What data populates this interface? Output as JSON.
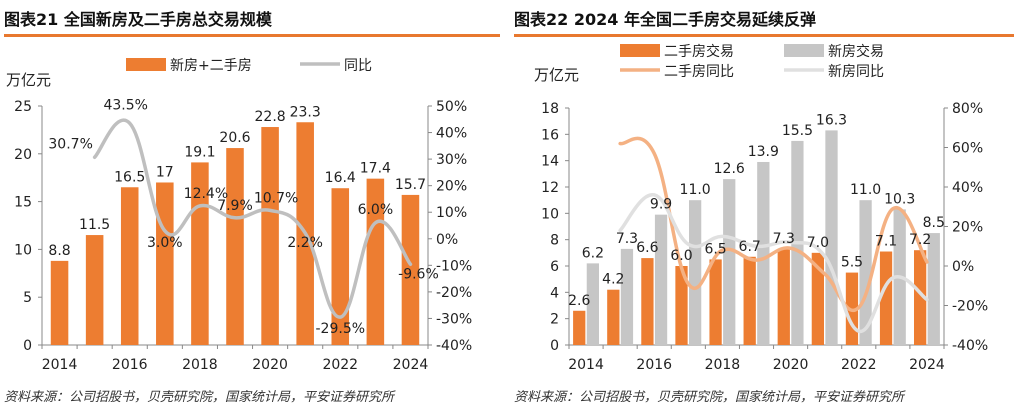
{
  "chart_data": [
    {
      "type": "bar",
      "title": "图表21   全国新房及二手房总交易规模",
      "unit_label": "万亿元",
      "categories": [
        "2014",
        "2015",
        "2016",
        "2017",
        "2018",
        "2019",
        "2020",
        "2021",
        "2022",
        "2023",
        "2024"
      ],
      "xtick_labels": [
        "2014",
        "2016",
        "2018",
        "2020",
        "2022",
        "2024"
      ],
      "y_left": {
        "ylim": [
          0,
          25
        ],
        "ticks": [
          "0",
          "5",
          "10",
          "15",
          "20",
          "25"
        ]
      },
      "y_right": {
        "ylim": [
          -40,
          50
        ],
        "ticks": [
          "-40%",
          "-30%",
          "-20%",
          "-10%",
          "0%",
          "10%",
          "20%",
          "30%",
          "40%",
          "50%"
        ]
      },
      "legend": [
        "新房+二手房",
        "同比"
      ],
      "legend_position": "top",
      "series": [
        {
          "name": "新房+二手房",
          "kind": "bar",
          "axis": "left",
          "color": "#ed7d31",
          "values": [
            8.8,
            11.5,
            16.5,
            17,
            19.1,
            20.6,
            22.8,
            23.3,
            16.4,
            17.4,
            15.7
          ],
          "labels": [
            "8.8",
            "11.5",
            "16.5",
            "17",
            "19.1",
            "20.6",
            "22.8",
            "23.3",
            "16.4",
            "17.4",
            "15.7"
          ]
        },
        {
          "name": "同比",
          "kind": "line",
          "axis": "right",
          "color": "#bfbfbf",
          "values": [
            null,
            30.7,
            43.5,
            3.0,
            12.4,
            7.9,
            10.7,
            2.2,
            -29.5,
            6.0,
            -9.6
          ],
          "labels": [
            null,
            "30.7%",
            "43.5%",
            "3.0%",
            "12.4%",
            "7.9%",
            "10.7%",
            "2.2%",
            "-29.5%",
            "6.0%",
            "-9.6%"
          ]
        }
      ],
      "source": "资料来源：公司招股书，贝壳研究院，国家统计局，平安证券研究所"
    },
    {
      "type": "bar",
      "title": "图表22   2024 年全国二手房交易延续反弹",
      "unit_label": "万亿元",
      "categories": [
        "2014",
        "2015",
        "2016",
        "2017",
        "2018",
        "2019",
        "2020",
        "2021",
        "2022",
        "2023",
        "2024"
      ],
      "xtick_labels": [
        "2014",
        "2016",
        "2018",
        "2020",
        "2022",
        "2024"
      ],
      "y_left": {
        "ylim": [
          0,
          18
        ],
        "ticks": [
          "0",
          "2",
          "4",
          "6",
          "8",
          "10",
          "12",
          "14",
          "16",
          "18"
        ]
      },
      "y_right": {
        "ylim": [
          -40,
          80
        ],
        "ticks": [
          "-40%",
          "-20%",
          "0%",
          "20%",
          "40%",
          "60%",
          "80%"
        ]
      },
      "legend": [
        "二手房交易",
        "新房交易",
        "二手房同比",
        "新房同比"
      ],
      "legend_position": "top",
      "series": [
        {
          "name": "二手房交易",
          "kind": "bar",
          "axis": "left",
          "color": "#ed7d31",
          "values": [
            2.6,
            4.2,
            6.6,
            6.0,
            6.5,
            6.7,
            7.3,
            7.0,
            5.5,
            7.1,
            7.2
          ],
          "labels": [
            "2.6",
            "4.2",
            "6.6",
            "6.0",
            "6.5",
            "6.7",
            "7.3",
            "7.0",
            "5.5",
            "7.1",
            "7.2"
          ]
        },
        {
          "name": "新房交易",
          "kind": "bar",
          "axis": "left",
          "color": "#c6c6c6",
          "values": [
            6.2,
            7.3,
            9.9,
            11.0,
            12.6,
            13.9,
            15.5,
            16.3,
            11.0,
            10.3,
            8.5
          ],
          "labels": [
            "6.2",
            "7.3",
            "9.9",
            "11.0",
            "12.6",
            "13.9",
            "15.5",
            "16.3",
            "11.0",
            "10.3",
            "8.5"
          ]
        },
        {
          "name": "二手房同比",
          "kind": "line",
          "axis": "right",
          "color": "#f4b183",
          "values": [
            null,
            62,
            57,
            -9,
            8,
            3,
            9,
            -4,
            -21,
            29,
            2
          ]
        },
        {
          "name": "新房同比",
          "kind": "line",
          "axis": "right",
          "color": "#e0e0e0",
          "values": [
            null,
            18,
            36,
            11,
            15,
            10,
            12,
            5,
            -33,
            -6,
            -17
          ]
        }
      ],
      "source": "资料来源：公司招股书，贝壳研究院，国家统计局，平安证券研究所"
    }
  ]
}
